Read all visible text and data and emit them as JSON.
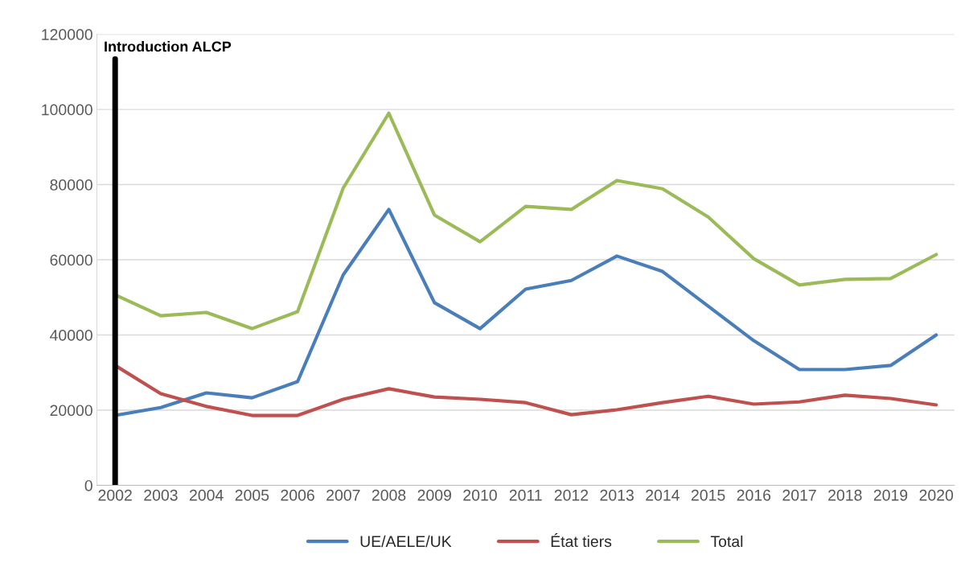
{
  "chart_data": {
    "type": "line",
    "categories": [
      "2002",
      "2003",
      "2004",
      "2005",
      "2006",
      "2007",
      "2008",
      "2009",
      "2010",
      "2011",
      "2012",
      "2013",
      "2014",
      "2015",
      "2016",
      "2017",
      "2018",
      "2019",
      "2020"
    ],
    "series": [
      {
        "name": "UE/AELE/UK",
        "color": "#4a7ebb",
        "values": [
          18600,
          20700,
          24600,
          23300,
          27600,
          56000,
          73400,
          48600,
          41700,
          52200,
          54500,
          61000,
          56900,
          47700,
          38500,
          30800,
          30800,
          31900,
          40000
        ]
      },
      {
        "name": "État tiers",
        "color": "#c0504d",
        "values": [
          31900,
          24400,
          21000,
          18600,
          18600,
          22900,
          25700,
          23500,
          22900,
          22000,
          18800,
          20100,
          22000,
          23700,
          21600,
          22200,
          24000,
          23100,
          21400
        ]
      },
      {
        "name": "Total",
        "color": "#9bbb59",
        "values": [
          50700,
          45100,
          46000,
          41700,
          46200,
          79100,
          99000,
          71900,
          64800,
          74200,
          73400,
          81100,
          78900,
          71400,
          60300,
          53300,
          54800,
          55000,
          61400
        ]
      }
    ],
    "ylim": [
      0,
      120000
    ],
    "yticks": [
      0,
      20000,
      40000,
      60000,
      80000,
      100000,
      120000
    ],
    "grid": "y",
    "legend": "bottom",
    "marker": "none",
    "line_style": "solid",
    "ref_lines": [
      {
        "axis": "x",
        "value": "2002",
        "label": "Introduction ALCP",
        "color": "#000000",
        "line_style": "solid"
      }
    ]
  }
}
